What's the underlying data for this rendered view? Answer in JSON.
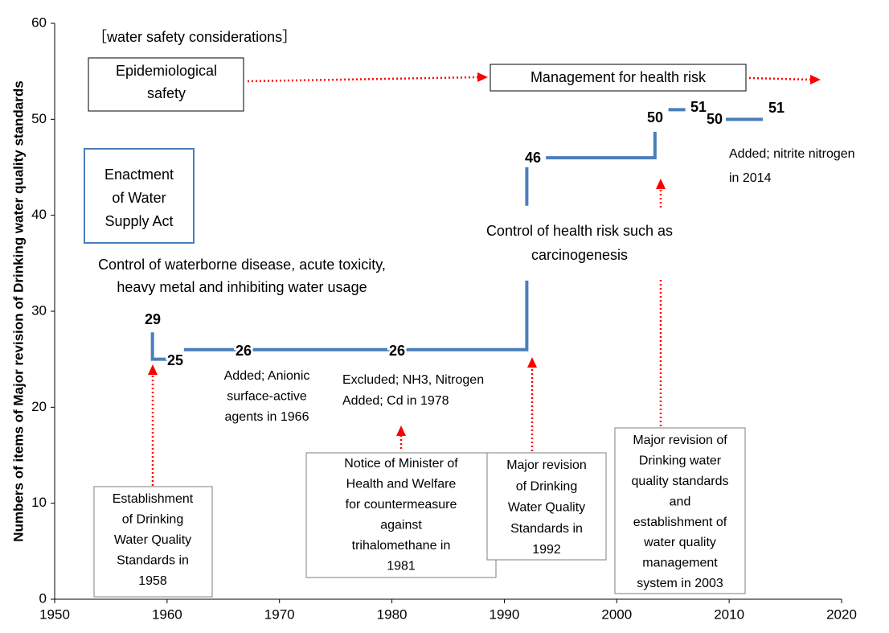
{
  "chart_data": {
    "type": "line",
    "y_label": "Numbers of items of Major revision of Drinking water quality standards",
    "xlim": [
      1950,
      2020
    ],
    "xticks": [
      1950,
      1960,
      1970,
      1980,
      1990,
      2000,
      2010,
      2020
    ],
    "ylim": [
      0,
      60
    ],
    "yticks": [
      0,
      10,
      20,
      30,
      40,
      50,
      60
    ],
    "x": [
      1958.7,
      1958.7,
      1960.0,
      1960.8,
      1961.5,
      1992.0,
      1992.0,
      1992.0,
      1992.0,
      1992.0,
      1992.8,
      1993.7,
      2003.4,
      2003.4,
      2004.0,
      2004.6,
      2006.1,
      2008.0,
      2009.7,
      2013.0
    ],
    "series": [
      {
        "color": "#4a7ebb",
        "values": [
          27.8,
          25,
          25,
          null,
          26,
          26,
          33.2,
          null,
          41,
          45,
          null,
          46,
          46,
          48.7,
          null,
          51,
          51,
          null,
          50,
          50
        ]
      }
    ],
    "step_labels": [
      "29",
      "25",
      "26",
      "26",
      "46",
      "50",
      "51",
      "50",
      "51"
    ],
    "annotations": [
      [
        "［water safety considerations］"
      ],
      [
        "Epidemiological",
        "safety"
      ],
      [
        "Management for health risk"
      ],
      [
        "Enactment",
        "of Water",
        "Supply Act"
      ],
      [
        "Control of waterborne disease, acute toxicity,",
        "heavy metal and inhibiting water usage"
      ],
      [
        "Control of health risk such as",
        "carcinogenesis"
      ],
      [
        "Added; nitrite nitrogen",
        "in 2014"
      ],
      [
        "Added; Anionic",
        "surface-active",
        "agents in 1966"
      ],
      [
        "Excluded; NH3, Nitrogen",
        "Added; Cd in 1978"
      ],
      [
        "Establishment",
        "of Drinking",
        "Water Quality",
        "Standards in",
        "1958"
      ],
      [
        "Notice of Minister of",
        "Health and Welfare",
        "for countermeasure",
        "against",
        "trihalomethane in",
        "1981"
      ],
      [
        "Major revision",
        "of Drinking",
        "Water Quality",
        "Standards in",
        "1992"
      ],
      [
        "Major revision of",
        "Drinking water",
        "quality standards",
        "and",
        "establishment of",
        "water quality",
        "management",
        "system in 2003"
      ]
    ]
  }
}
